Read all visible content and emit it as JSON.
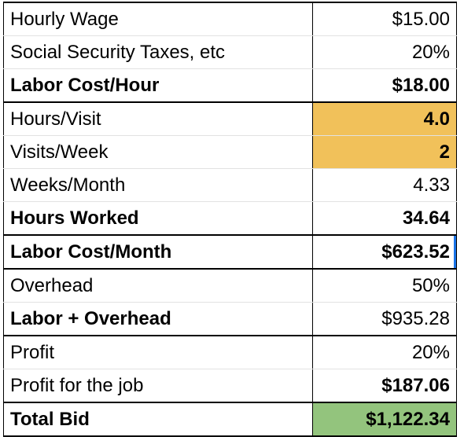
{
  "sheet": {
    "rows": [
      {
        "label": "Hourly Wage",
        "value": "$15.00"
      },
      {
        "label": "Social Security Taxes, etc",
        "value": "20%"
      },
      {
        "label": "Labor Cost/Hour",
        "value": "$18.00"
      },
      {
        "label": "Hours/Visit",
        "value": "4.0"
      },
      {
        "label": "Visits/Week",
        "value": "2"
      },
      {
        "label": "Weeks/Month",
        "value": "4.33"
      },
      {
        "label": "Hours Worked",
        "value": "34.64"
      },
      {
        "label": "Labor Cost/Month",
        "value": "$623.52"
      },
      {
        "label": "Overhead",
        "value": "50%"
      },
      {
        "label": "Labor + Overhead",
        "value": "$935.28"
      },
      {
        "label": "Profit",
        "value": "20%"
      },
      {
        "label": "Profit for the job",
        "value": "$187.06"
      },
      {
        "label": "Total Bid",
        "value": "$1,122.34"
      }
    ]
  },
  "colors": {
    "input_highlight": "#f1c15a",
    "total_highlight": "#93c47d",
    "selection_accent": "#1a73e8"
  }
}
